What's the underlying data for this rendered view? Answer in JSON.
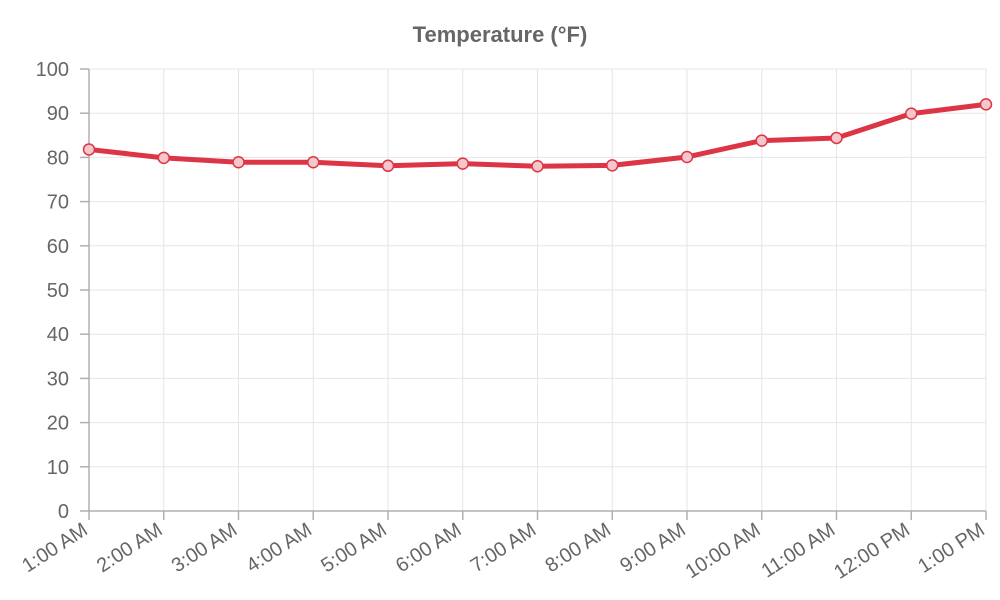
{
  "chart_data": {
    "type": "line",
    "title": "Temperature (°F)",
    "categories": [
      "1:00 AM",
      "2:00 AM",
      "3:00 AM",
      "4:00 AM",
      "5:00 AM",
      "6:00 AM",
      "7:00 AM",
      "8:00 AM",
      "9:00 AM",
      "10:00 AM",
      "11:00 AM",
      "12:00 PM",
      "1:00 PM"
    ],
    "series": [
      {
        "values": [
          81.8,
          79.9,
          78.9,
          78.9,
          78.1,
          78.6,
          78.0,
          78.2,
          80.1,
          83.8,
          84.4,
          89.9,
          92.0
        ],
        "color": "#dc3545",
        "point_fill": "#f5c6cb"
      }
    ],
    "xlabel": "",
    "ylabel": "",
    "ylim": [
      0,
      100
    ],
    "yticks": [
      0,
      10,
      20,
      30,
      40,
      50,
      60,
      70,
      80,
      90,
      100
    ],
    "grid": true,
    "legend": "none"
  }
}
